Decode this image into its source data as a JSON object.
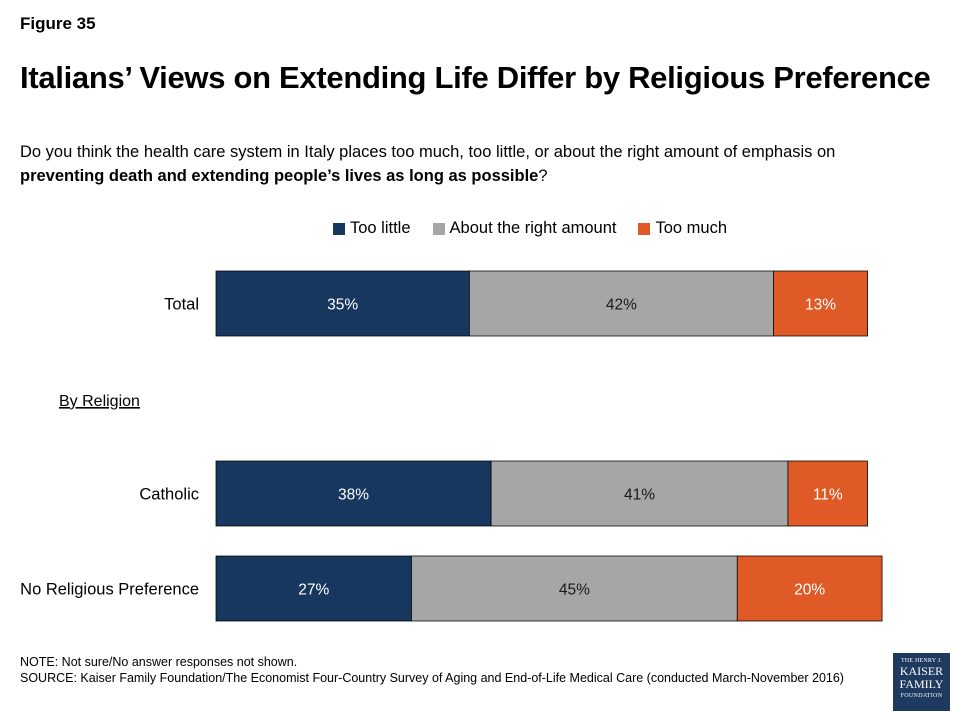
{
  "figure_label": "Figure 35",
  "question": {
    "part1": "Do you think the health care system in Italy places too much, too little, or about the right amount of emphasis on ",
    "bold": "preventing death and extending people’s lives as long as possible",
    "part2": "?"
  },
  "notes": {
    "note": "NOTE: Not sure/No answer responses not shown.",
    "source": "SOURCE: Kaiser Family Foundation/The Economist Four-Country Survey of Aging and End-of-Life Medical Care (conducted March-November 2016)"
  },
  "logo": {
    "line1": "THE HENRY J.",
    "line2": "KAISER",
    "line3": "FAMILY",
    "line4": "FOUNDATION"
  },
  "colors": {
    "too_little": "#17375e",
    "about_right": "#a6a6a6",
    "too_much": "#e05a27"
  },
  "chart_data": {
    "type": "bar",
    "orientation": "horizontal",
    "stacked": true,
    "title": "Italians’ Views on Extending Life Differ by Religious Preference",
    "group_label": "By Religion",
    "legend_position": "top",
    "categories": [
      "Total",
      "Catholic",
      "No Religious Preference"
    ],
    "series": [
      {
        "name": "Too little",
        "values": [
          35,
          38,
          27
        ],
        "labels": [
          "35%",
          "38%",
          "27%"
        ],
        "color": "#17375e"
      },
      {
        "name": "About the right amount",
        "values": [
          42,
          41,
          45
        ],
        "labels": [
          "42%",
          "41%",
          "45%"
        ],
        "color": "#a6a6a6"
      },
      {
        "name": "Too much",
        "values": [
          13,
          11,
          20
        ],
        "labels": [
          "13%",
          "11%",
          "20%"
        ],
        "color": "#e05a27"
      }
    ]
  }
}
